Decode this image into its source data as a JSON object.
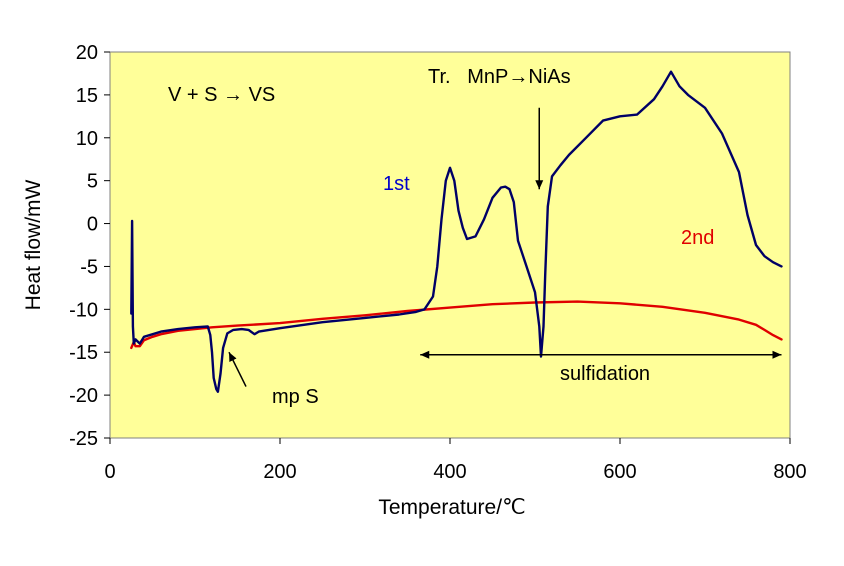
{
  "chart_data": {
    "type": "line",
    "xlabel": "Temperature/℃",
    "ylabel": "Heat flow/mW",
    "xlim": [
      0,
      800
    ],
    "ylim": [
      -25,
      20
    ],
    "x_ticks": [
      "0",
      "200",
      "400",
      "600",
      "800"
    ],
    "y_ticks": [
      "20",
      "15",
      "10",
      "5",
      "0",
      "-5",
      "-10",
      "-15",
      "-20",
      "-25"
    ],
    "grid": false,
    "plot_background": "#ffff99",
    "series": [
      {
        "name": "1st",
        "color": "#000066",
        "x": [
          25,
          26,
          27,
          28,
          30,
          35,
          40,
          60,
          80,
          100,
          115,
          118,
          120,
          122,
          125,
          127,
          130,
          133,
          138,
          145,
          155,
          163,
          170,
          175,
          200,
          250,
          300,
          340,
          360,
          370,
          380,
          385,
          390,
          395,
          400,
          405,
          410,
          415,
          420,
          430,
          440,
          450,
          460,
          465,
          470,
          475,
          480,
          490,
          500,
          505,
          507,
          510,
          512,
          515,
          520,
          530,
          540,
          560,
          580,
          600,
          620,
          640,
          650,
          660,
          670,
          680,
          700,
          720,
          740,
          750,
          760,
          770,
          780,
          790
        ],
        "y": [
          -10.5,
          0.3,
          -12,
          -14,
          -13.5,
          -14,
          -13.2,
          -12.6,
          -12.3,
          -12.1,
          -12,
          -13,
          -15,
          -18,
          -19.3,
          -19.6,
          -17.5,
          -14.5,
          -12.8,
          -12.4,
          -12.3,
          -12.4,
          -12.9,
          -12.6,
          -12.2,
          -11.5,
          -11,
          -10.6,
          -10.3,
          -10,
          -8.5,
          -5,
          0.5,
          5,
          6.5,
          5,
          1.5,
          -0.5,
          -1.8,
          -1.5,
          0.5,
          3,
          4.2,
          4.3,
          4,
          2.5,
          -2,
          -5,
          -8,
          -12,
          -15.5,
          -12,
          -6,
          2,
          5.5,
          6.8,
          8,
          10,
          12,
          12.5,
          12.7,
          14.5,
          16,
          17.7,
          16,
          15,
          13.5,
          10.5,
          6,
          1,
          -2.5,
          -3.8,
          -4.5,
          -5
        ]
      },
      {
        "name": "2nd",
        "color": "#e00000",
        "x": [
          25,
          28,
          30,
          35,
          40,
          50,
          60,
          80,
          100,
          120,
          150,
          200,
          250,
          300,
          350,
          400,
          450,
          500,
          550,
          600,
          650,
          700,
          740,
          760,
          770,
          780,
          790
        ],
        "y": [
          -14.5,
          -13.8,
          -14.3,
          -14.3,
          -13.6,
          -13.2,
          -12.9,
          -12.5,
          -12.3,
          -12.1,
          -11.9,
          -11.6,
          -11.1,
          -10.7,
          -10.2,
          -9.8,
          -9.4,
          -9.2,
          -9.1,
          -9.3,
          -9.7,
          -10.4,
          -11.2,
          -11.8,
          -12.4,
          -13,
          -13.5
        ]
      }
    ],
    "annotations": {
      "reaction": "V + S → VS",
      "transition": "Tr.   MnP→NiAs",
      "first_run": "1st",
      "second_run": "2nd",
      "melting": "mp S",
      "sulfidation": "sulfidation"
    },
    "annotation_marks": {
      "transition_arrow_x": 505,
      "transition_arrow_y": [
        13.5,
        4
      ],
      "mp_arrow": {
        "from": [
          160,
          -19
        ],
        "to": [
          140,
          -15
        ]
      },
      "sulfidation_range": [
        365,
        790
      ],
      "sulfidation_y": -15.3
    }
  }
}
